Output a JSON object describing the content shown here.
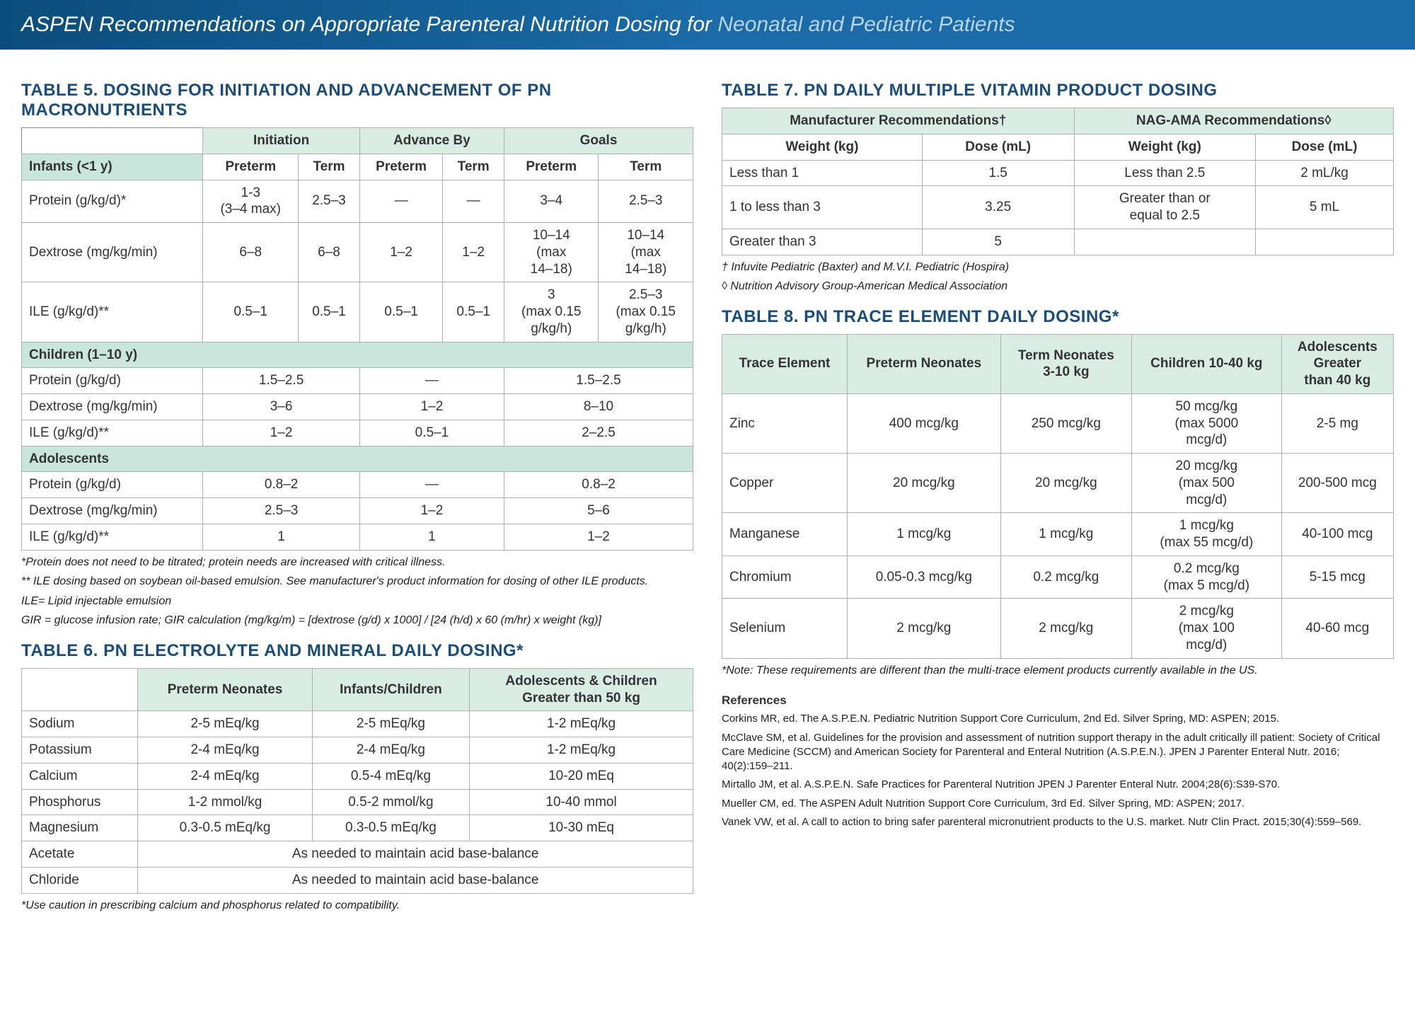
{
  "header": {
    "main": "ASPEN Recommendations on Appropriate Parenteral Nutrition Dosing for ",
    "sub": "Neonatal and Pediatric Patients"
  },
  "colors": {
    "header_bg_start": "#0a4d7a",
    "header_bg_end": "#1a6ba8",
    "title_color": "#1a4d7a",
    "section_head_bg": "#c8e6dc",
    "top_head_bg": "#d9ede5",
    "border": "#b0b0b0"
  },
  "table5": {
    "title": "TABLE 5. DOSING FOR INITIATION AND ADVANCEMENT OF PN MACRONUTRIENTS",
    "group_headers": [
      "Initiation",
      "Advance By",
      "Goals"
    ],
    "sub_headers": [
      "Preterm",
      "Term",
      "Preterm",
      "Term",
      "Preterm",
      "Term"
    ],
    "sections": [
      {
        "label": "Infants (<1 y)",
        "rows": [
          {
            "label": "Protein (g/kg/d)*",
            "cells": [
              "1-3\n(3–4 max)",
              "2.5–3",
              "—",
              "—",
              "3–4",
              "2.5–3"
            ]
          },
          {
            "label": "Dextrose (mg/kg/min)",
            "cells": [
              "6–8",
              "6–8",
              "1–2",
              "1–2",
              "10–14\n(max\n14–18)",
              "10–14\n(max\n14–18)"
            ]
          },
          {
            "label": "ILE (g/kg/d)**",
            "cells": [
              "0.5–1",
              "0.5–1",
              "0.5–1",
              "0.5–1",
              "3\n(max 0.15\ng/kg/h)",
              "2.5–3\n(max 0.15\ng/kg/h)"
            ]
          }
        ]
      },
      {
        "label": "Children (1–10 y)",
        "rows": [
          {
            "label": "Protein (g/kg/d)",
            "span_cells": [
              "1.5–2.5",
              "—",
              "1.5–2.5"
            ]
          },
          {
            "label": "Dextrose (mg/kg/min)",
            "span_cells": [
              "3–6",
              "1–2",
              "8–10"
            ]
          },
          {
            "label": "ILE (g/kg/d)**",
            "span_cells": [
              "1–2",
              "0.5–1",
              "2–2.5"
            ]
          }
        ]
      },
      {
        "label": "Adolescents",
        "rows": [
          {
            "label": "Protein (g/kg/d)",
            "span_cells": [
              "0.8–2",
              "—",
              "0.8–2"
            ]
          },
          {
            "label": "Dextrose (mg/kg/min)",
            "span_cells": [
              "2.5–3",
              "1–2",
              "5–6"
            ]
          },
          {
            "label": "ILE (g/kg/d)**",
            "span_cells": [
              "1",
              "1",
              "1–2"
            ]
          }
        ]
      }
    ],
    "footnotes": [
      "*Protein does not need to be titrated; protein needs are increased with critical illness.",
      "** ILE dosing based on soybean oil-based emulsion. See manufacturer's product information for dosing of other ILE products.",
      "ILE= Lipid injectable emulsion",
      "GIR = glucose infusion rate; GIR calculation (mg/kg/m) = [dextrose (g/d) x 1000] / [24 (h/d) x 60 (m/hr) x weight (kg)]"
    ]
  },
  "table6": {
    "title": "TABLE 6. PN ELECTROLYTE AND MINERAL DAILY DOSING*",
    "headers": [
      "",
      "Preterm Neonates",
      "Infants/Children",
      "Adolescents & Children\nGreater than 50 kg"
    ],
    "rows": [
      {
        "label": "Sodium",
        "cells": [
          "2-5 mEq/kg",
          "2-5 mEq/kg",
          "1-2 mEq/kg"
        ]
      },
      {
        "label": "Potassium",
        "cells": [
          "2-4 mEq/kg",
          "2-4 mEq/kg",
          "1-2 mEq/kg"
        ]
      },
      {
        "label": "Calcium",
        "cells": [
          "2-4 mEq/kg",
          "0.5-4 mEq/kg",
          "10-20 mEq"
        ]
      },
      {
        "label": "Phosphorus",
        "cells": [
          "1-2 mmol/kg",
          "0.5-2 mmol/kg",
          "10-40 mmol"
        ]
      },
      {
        "label": "Magnesium",
        "cells": [
          "0.3-0.5 mEq/kg",
          "0.3-0.5 mEq/kg",
          "10-30 mEq"
        ]
      },
      {
        "label": "Acetate",
        "span_text": "As needed to maintain acid base-balance"
      },
      {
        "label": "Chloride",
        "span_text": "As needed to maintain acid base-balance"
      }
    ],
    "footnote": "*Use caution in prescribing calcium and phosphorus related to compatibility."
  },
  "table7": {
    "title": "TABLE 7. PN DAILY MULTIPLE VITAMIN PRODUCT DOSING",
    "group_headers": [
      "Manufacturer Recommendations†",
      "NAG-AMA Recommendations◊"
    ],
    "sub_headers": [
      "Weight (kg)",
      "Dose (mL)",
      "Weight (kg)",
      "Dose (mL)"
    ],
    "rows": [
      [
        "Less than 1",
        "1.5",
        "Less than 2.5",
        "2 mL/kg"
      ],
      [
        "1 to less than 3",
        "3.25",
        "Greater than or\nequal to 2.5",
        "5 mL"
      ],
      [
        "Greater than 3",
        "5",
        "",
        ""
      ]
    ],
    "footnotes": [
      "† Infuvite Pediatric (Baxter) and M.V.I. Pediatric (Hospira)",
      "◊ Nutrition Advisory Group-American Medical Association"
    ]
  },
  "table8": {
    "title": "TABLE 8. PN TRACE ELEMENT DAILY DOSING*",
    "headers": [
      "Trace Element",
      "Preterm Neonates",
      "Term Neonates\n3-10 kg",
      "Children 10-40 kg",
      "Adolescents\nGreater\nthan 40 kg"
    ],
    "rows": [
      {
        "label": "Zinc",
        "cells": [
          "400 mcg/kg",
          "250 mcg/kg",
          "50 mcg/kg\n(max 5000\nmcg/d)",
          "2-5 mg"
        ]
      },
      {
        "label": "Copper",
        "cells": [
          "20 mcg/kg",
          "20 mcg/kg",
          "20 mcg/kg\n(max 500\nmcg/d)",
          "200-500 mcg"
        ]
      },
      {
        "label": "Manganese",
        "cells": [
          "1 mcg/kg",
          "1 mcg/kg",
          "1 mcg/kg\n(max 55 mcg/d)",
          "40-100 mcg"
        ]
      },
      {
        "label": "Chromium",
        "cells": [
          "0.05-0.3 mcg/kg",
          "0.2 mcg/kg",
          "0.2 mcg/kg\n(max 5 mcg/d)",
          "5-15 mcg"
        ]
      },
      {
        "label": "Selenium",
        "cells": [
          "2 mcg/kg",
          "2 mcg/kg",
          "2 mcg/kg\n(max 100\nmcg/d)",
          "40-60 mcg"
        ]
      }
    ],
    "footnote": "*Note: These requirements are different than the multi-trace element products currently available in the US."
  },
  "references": {
    "title": "References",
    "items": [
      "Corkins MR, ed. The A.S.P.E.N. Pediatric Nutrition Support Core Curriculum, 2nd Ed. Silver Spring, MD: ASPEN; 2015.",
      "McClave SM, et al. Guidelines for the provision and assessment of nutrition support therapy in the adult critically ill patient: Society of Critical Care Medicine (SCCM) and American Society for Parenteral and Enteral Nutrition (A.S.P.E.N.). JPEN J Parenter Enteral Nutr. 2016; 40(2):159–211.",
      "Mirtallo JM, et al. A.S.P.E.N. Safe Practices for Parenteral Nutrition JPEN J Parenter Enteral Nutr. 2004;28(6):S39-S70.",
      "Mueller CM, ed. The ASPEN Adult Nutrition Support Core Curriculum, 3rd Ed. Silver Spring, MD: ASPEN; 2017.",
      "Vanek VW, et al. A call to action to bring safer parenteral micronutrient products to the U.S. market. Nutr Clin Pract. 2015;30(4):559–569."
    ]
  }
}
